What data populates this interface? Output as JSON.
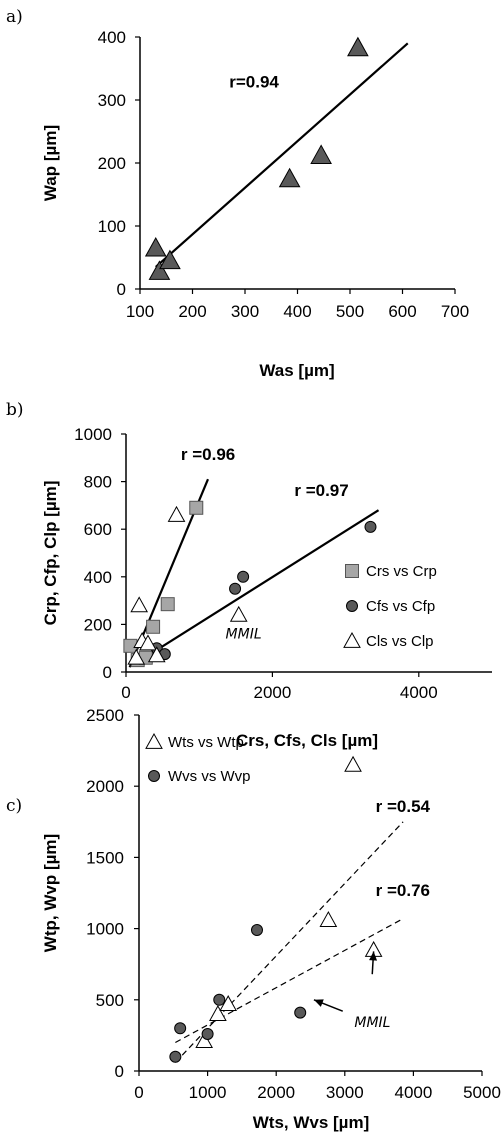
{
  "colors": {
    "gray_square": "#a6a6a6",
    "dark_marker": "#595959",
    "outline": "#000000"
  },
  "chart_data": [
    {
      "id": "a",
      "panel_label": "a)",
      "type": "scatter",
      "xlabel": "Was [µm]",
      "ylabel": "Wap [µm]",
      "xlim": [
        100,
        700
      ],
      "ylim": [
        0,
        400
      ],
      "xticks": [
        100,
        200,
        300,
        400,
        500,
        600,
        700
      ],
      "yticks": [
        0,
        100,
        200,
        300,
        400
      ],
      "grid": false,
      "series": [
        {
          "marker": "triangle-filled",
          "points": [
            [
              130,
              65
            ],
            [
              137,
              28
            ],
            [
              157,
              45
            ],
            [
              385,
              175
            ],
            [
              445,
              212
            ],
            [
              515,
              383
            ]
          ]
        }
      ],
      "fits": [
        {
          "x1": 130,
          "y1": 35,
          "x2": 610,
          "y2": 390,
          "dash": false
        }
      ],
      "annotations": [
        {
          "text": "r=0.94",
          "x": 270,
          "y": 320,
          "style": "bold"
        }
      ]
    },
    {
      "id": "b",
      "panel_label": "b)",
      "type": "scatter",
      "xlabel": "Crs, Cfs, Cls [µm]",
      "ylabel": "Crp, Cfp, Clp [µm]",
      "xlim": [
        0,
        5000
      ],
      "ylim": [
        0,
        1000
      ],
      "xticks": [
        0,
        2000,
        4000
      ],
      "yticks": [
        0,
        200,
        400,
        600,
        800,
        1000
      ],
      "grid": false,
      "legend": {
        "placement": "right",
        "entries": [
          {
            "label": "Crs vs Crp",
            "marker": "square-gray"
          },
          {
            "label": "Cfs vs Cfp",
            "marker": "circle-dark"
          },
          {
            "label": "Cls vs Clp",
            "marker": "triangle-open"
          }
        ]
      },
      "series": [
        {
          "name": "Crs vs Crp",
          "marker": "square-gray",
          "points": [
            [
              60,
              110
            ],
            [
              160,
              50
            ],
            [
              270,
              60
            ],
            [
              370,
              190
            ],
            [
              570,
              285
            ],
            [
              960,
              690
            ]
          ]
        },
        {
          "name": "Cfs vs Cfp",
          "marker": "circle-dark",
          "points": [
            [
              420,
              100
            ],
            [
              530,
              75
            ],
            [
              1490,
              350
            ],
            [
              1600,
              400
            ],
            [
              3340,
              610
            ]
          ]
        },
        {
          "name": "Cls vs Clp",
          "marker": "triangle-open",
          "points": [
            [
              140,
              60
            ],
            [
              180,
              280
            ],
            [
              220,
              130
            ],
            [
              300,
              120
            ],
            [
              420,
              70
            ],
            [
              690,
              660
            ],
            [
              1540,
              240
            ]
          ]
        }
      ],
      "fits": [
        {
          "x1": 50,
          "y1": 20,
          "x2": 1120,
          "y2": 810,
          "dash": false
        },
        {
          "x1": 150,
          "y1": 40,
          "x2": 3450,
          "y2": 680,
          "dash": false
        }
      ],
      "annotations": [
        {
          "text": "r =0.96",
          "x": 750,
          "y": 890,
          "style": "bold"
        },
        {
          "text": "r =0.97",
          "x": 2300,
          "y": 740,
          "style": "bold"
        },
        {
          "text": "MMIL",
          "x": 1360,
          "y": 140,
          "style": "italic"
        }
      ]
    },
    {
      "id": "c",
      "panel_label": "c)",
      "type": "scatter",
      "xlabel": "Wts, Wvs [µm]",
      "ylabel": "Wtp, Wvp [µm]",
      "xlim": [
        0,
        5000
      ],
      "ylim": [
        0,
        2500
      ],
      "xticks": [
        0,
        1000,
        2000,
        3000,
        4000,
        5000
      ],
      "yticks": [
        0,
        500,
        1000,
        1500,
        2000,
        2500
      ],
      "grid": false,
      "legend": {
        "placement": "top-left",
        "entries": [
          {
            "label": "Wts vs Wtp",
            "marker": "triangle-open"
          },
          {
            "label": "Wvs vs Wvp",
            "marker": "circle-dark"
          }
        ]
      },
      "series": [
        {
          "name": "Wts vs Wtp",
          "marker": "triangle-open",
          "points": [
            [
              950,
              210
            ],
            [
              1150,
              400
            ],
            [
              1300,
              470
            ],
            [
              2760,
              1060
            ],
            [
              3120,
              2150
            ],
            [
              3420,
              850
            ]
          ]
        },
        {
          "name": "Wvs vs Wvp",
          "marker": "circle-dark",
          "points": [
            [
              530,
              100
            ],
            [
              600,
              300
            ],
            [
              1000,
              260
            ],
            [
              1170,
              500
            ],
            [
              1720,
              990
            ],
            [
              2350,
              410
            ]
          ]
        }
      ],
      "fits": [
        {
          "x1": 530,
          "y1": 60,
          "x2": 3850,
          "y2": 1750,
          "dash": true
        },
        {
          "x1": 530,
          "y1": 200,
          "x2": 3850,
          "y2": 1070,
          "dash": true
        }
      ],
      "annotations": [
        {
          "text": "r =0.54",
          "x": 3450,
          "y": 1820,
          "style": "bold"
        },
        {
          "text": "r =0.76",
          "x": 3450,
          "y": 1230,
          "style": "bold"
        },
        {
          "text": "MMIL",
          "x": 3140,
          "y": 310,
          "style": "italic"
        }
      ],
      "arrows": [
        {
          "from": [
            3400,
            680
          ],
          "to": [
            3420,
            840
          ]
        },
        {
          "from": [
            2970,
            420
          ],
          "to": [
            2550,
            500
          ]
        }
      ]
    }
  ]
}
